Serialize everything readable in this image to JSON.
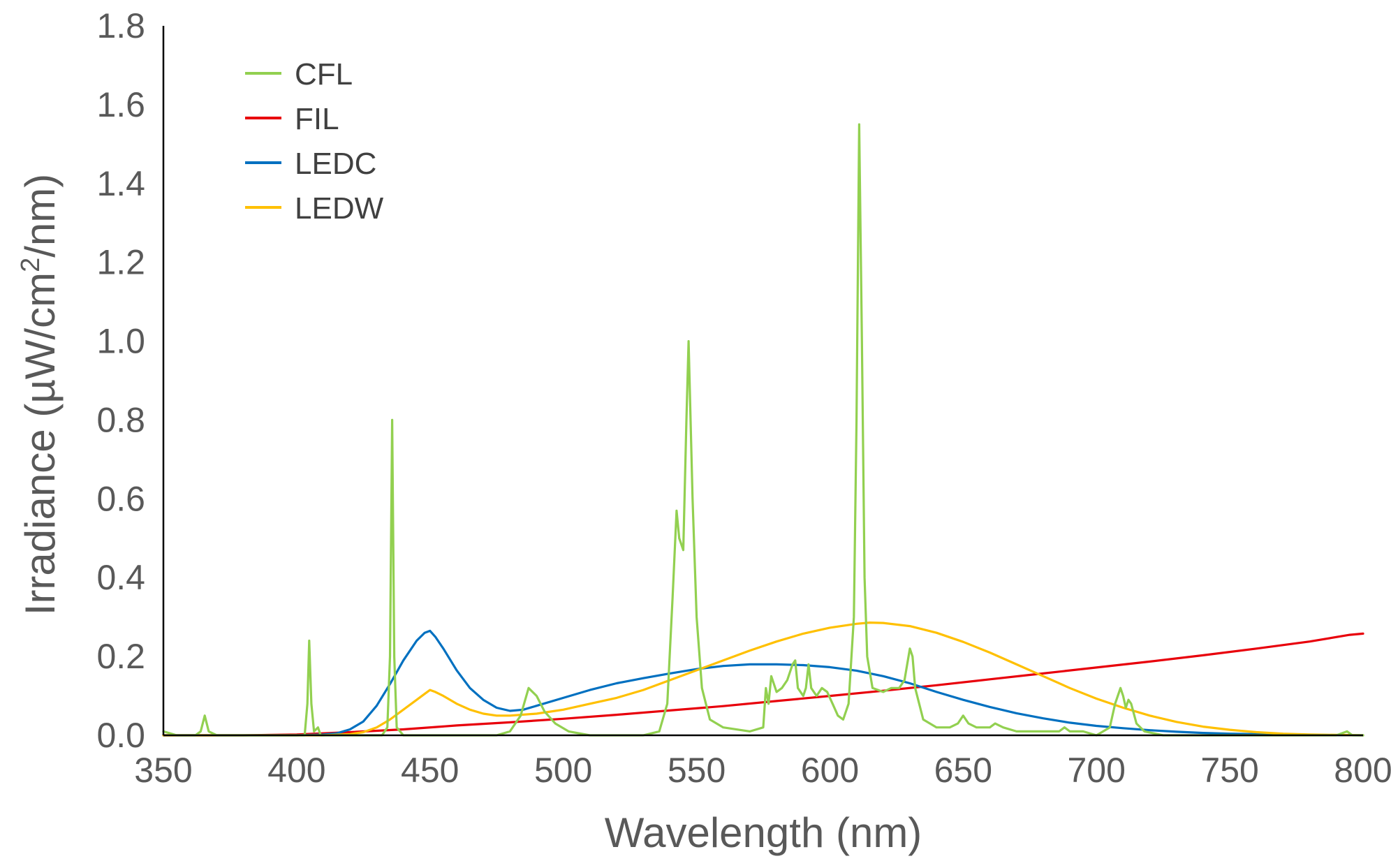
{
  "chart_data": {
    "type": "line",
    "title": "",
    "xlabel": "Wavelength (nm)",
    "ylabel": "Irradiance (µW/cm²/nm)",
    "ylabel_parts": {
      "main": "Irradiance (µW/cm",
      "sup": "2",
      "tail": "/nm)"
    },
    "xlim": [
      350,
      800
    ],
    "ylim": [
      0,
      1.8
    ],
    "xticks": [
      "350",
      "400",
      "450",
      "500",
      "550",
      "600",
      "650",
      "700",
      "750",
      "800"
    ],
    "yticks": [
      "0.0",
      "0.2",
      "0.4",
      "0.6",
      "0.8",
      "1.0",
      "1.2",
      "1.4",
      "1.6",
      "1.8"
    ],
    "grid": false,
    "legend_position": "top-left",
    "series": [
      {
        "name": "CFL",
        "color": "#92D050",
        "points": [
          [
            350,
            0.01
          ],
          [
            355,
            0.0
          ],
          [
            362,
            0.0
          ],
          [
            364,
            0.01
          ],
          [
            365.5,
            0.05
          ],
          [
            367,
            0.01
          ],
          [
            370,
            0.0
          ],
          [
            380,
            0.0
          ],
          [
            390,
            0.0
          ],
          [
            400,
            0.0
          ],
          [
            403,
            0.0
          ],
          [
            404,
            0.08
          ],
          [
            404.7,
            0.24
          ],
          [
            405.5,
            0.08
          ],
          [
            406.5,
            0.01
          ],
          [
            408,
            0.02
          ],
          [
            409,
            0.0
          ],
          [
            420,
            0.0
          ],
          [
            432,
            0.0
          ],
          [
            434,
            0.02
          ],
          [
            435,
            0.2
          ],
          [
            435.8,
            0.8
          ],
          [
            436.6,
            0.2
          ],
          [
            437.5,
            0.02
          ],
          [
            440,
            0.0
          ],
          [
            460,
            0.0
          ],
          [
            475,
            0.0
          ],
          [
            480,
            0.01
          ],
          [
            484,
            0.05
          ],
          [
            487,
            0.12
          ],
          [
            490,
            0.1
          ],
          [
            493,
            0.06
          ],
          [
            497,
            0.03
          ],
          [
            502,
            0.01
          ],
          [
            510,
            0.0
          ],
          [
            530,
            0.0
          ],
          [
            536,
            0.01
          ],
          [
            539,
            0.08
          ],
          [
            541,
            0.35
          ],
          [
            542.5,
            0.57
          ],
          [
            543.5,
            0.5
          ],
          [
            545,
            0.47
          ],
          [
            546.2,
            0.8
          ],
          [
            547,
            1.0
          ],
          [
            548.5,
            0.6
          ],
          [
            550,
            0.3
          ],
          [
            552,
            0.12
          ],
          [
            555,
            0.04
          ],
          [
            560,
            0.02
          ],
          [
            570,
            0.01
          ],
          [
            575,
            0.02
          ],
          [
            576,
            0.12
          ],
          [
            577,
            0.08
          ],
          [
            578,
            0.15
          ],
          [
            580,
            0.11
          ],
          [
            582,
            0.12
          ],
          [
            584,
            0.14
          ],
          [
            586,
            0.18
          ],
          [
            587,
            0.19
          ],
          [
            588,
            0.12
          ],
          [
            590,
            0.1
          ],
          [
            591,
            0.12
          ],
          [
            592,
            0.18
          ],
          [
            593,
            0.12
          ],
          [
            595,
            0.1
          ],
          [
            597,
            0.12
          ],
          [
            599,
            0.11
          ],
          [
            601,
            0.08
          ],
          [
            603,
            0.05
          ],
          [
            605,
            0.04
          ],
          [
            607,
            0.08
          ],
          [
            609,
            0.3
          ],
          [
            610,
            0.8
          ],
          [
            611,
            1.55
          ],
          [
            612,
            1.0
          ],
          [
            613,
            0.4
          ],
          [
            614,
            0.2
          ],
          [
            616,
            0.12
          ],
          [
            620,
            0.11
          ],
          [
            623,
            0.12
          ],
          [
            626,
            0.12
          ],
          [
            628,
            0.14
          ],
          [
            630,
            0.22
          ],
          [
            631,
            0.2
          ],
          [
            632,
            0.12
          ],
          [
            635,
            0.04
          ],
          [
            640,
            0.02
          ],
          [
            645,
            0.02
          ],
          [
            648,
            0.03
          ],
          [
            650,
            0.05
          ],
          [
            652,
            0.03
          ],
          [
            655,
            0.02
          ],
          [
            660,
            0.02
          ],
          [
            662,
            0.03
          ],
          [
            665,
            0.02
          ],
          [
            670,
            0.01
          ],
          [
            680,
            0.01
          ],
          [
            686,
            0.01
          ],
          [
            688,
            0.02
          ],
          [
            690,
            0.01
          ],
          [
            695,
            0.01
          ],
          [
            700,
            0.0
          ],
          [
            705,
            0.02
          ],
          [
            707,
            0.08
          ],
          [
            709,
            0.12
          ],
          [
            710,
            0.1
          ],
          [
            711,
            0.07
          ],
          [
            712,
            0.09
          ],
          [
            713,
            0.08
          ],
          [
            715,
            0.03
          ],
          [
            718,
            0.01
          ],
          [
            725,
            0.0
          ],
          [
            740,
            0.0
          ],
          [
            770,
            0.0
          ],
          [
            790,
            0.0
          ],
          [
            794,
            0.01
          ],
          [
            796,
            0.0
          ],
          [
            800,
            0.0
          ]
        ]
      },
      {
        "name": "FIL",
        "color": "#E8000B",
        "points": [
          [
            350,
            0.0
          ],
          [
            380,
            0.0
          ],
          [
            400,
            0.002
          ],
          [
            420,
            0.008
          ],
          [
            440,
            0.015
          ],
          [
            460,
            0.025
          ],
          [
            480,
            0.033
          ],
          [
            500,
            0.042
          ],
          [
            520,
            0.052
          ],
          [
            540,
            0.063
          ],
          [
            560,
            0.074
          ],
          [
            580,
            0.087
          ],
          [
            600,
            0.1
          ],
          [
            620,
            0.113
          ],
          [
            640,
            0.127
          ],
          [
            660,
            0.142
          ],
          [
            680,
            0.157
          ],
          [
            700,
            0.172
          ],
          [
            720,
            0.187
          ],
          [
            740,
            0.203
          ],
          [
            760,
            0.22
          ],
          [
            780,
            0.238
          ],
          [
            795,
            0.255
          ],
          [
            800,
            0.258
          ]
        ]
      },
      {
        "name": "LEDC",
        "color": "#0070C0",
        "points": [
          [
            350,
            0.0
          ],
          [
            400,
            0.0
          ],
          [
            410,
            0.002
          ],
          [
            415,
            0.005
          ],
          [
            420,
            0.015
          ],
          [
            425,
            0.035
          ],
          [
            430,
            0.075
          ],
          [
            435,
            0.13
          ],
          [
            440,
            0.19
          ],
          [
            445,
            0.24
          ],
          [
            448,
            0.26
          ],
          [
            450,
            0.265
          ],
          [
            452,
            0.25
          ],
          [
            455,
            0.22
          ],
          [
            460,
            0.165
          ],
          [
            465,
            0.12
          ],
          [
            470,
            0.09
          ],
          [
            475,
            0.07
          ],
          [
            480,
            0.062
          ],
          [
            485,
            0.065
          ],
          [
            490,
            0.075
          ],
          [
            500,
            0.095
          ],
          [
            510,
            0.115
          ],
          [
            520,
            0.132
          ],
          [
            530,
            0.145
          ],
          [
            540,
            0.157
          ],
          [
            550,
            0.168
          ],
          [
            560,
            0.176
          ],
          [
            570,
            0.18
          ],
          [
            580,
            0.18
          ],
          [
            590,
            0.178
          ],
          [
            600,
            0.173
          ],
          [
            610,
            0.164
          ],
          [
            620,
            0.15
          ],
          [
            630,
            0.132
          ],
          [
            640,
            0.11
          ],
          [
            650,
            0.09
          ],
          [
            660,
            0.072
          ],
          [
            670,
            0.056
          ],
          [
            680,
            0.043
          ],
          [
            690,
            0.032
          ],
          [
            700,
            0.024
          ],
          [
            710,
            0.018
          ],
          [
            720,
            0.013
          ],
          [
            730,
            0.009
          ],
          [
            740,
            0.006
          ],
          [
            750,
            0.004
          ],
          [
            760,
            0.003
          ],
          [
            770,
            0.002
          ],
          [
            780,
            0.001
          ],
          [
            800,
            0.0
          ]
        ]
      },
      {
        "name": "LEDW",
        "color": "#FFC000",
        "points": [
          [
            350,
            0.0
          ],
          [
            410,
            0.0
          ],
          [
            420,
            0.003
          ],
          [
            425,
            0.008
          ],
          [
            430,
            0.02
          ],
          [
            435,
            0.04
          ],
          [
            440,
            0.065
          ],
          [
            445,
            0.09
          ],
          [
            448,
            0.105
          ],
          [
            450,
            0.115
          ],
          [
            452,
            0.11
          ],
          [
            455,
            0.1
          ],
          [
            460,
            0.08
          ],
          [
            465,
            0.065
          ],
          [
            470,
            0.055
          ],
          [
            475,
            0.05
          ],
          [
            480,
            0.05
          ],
          [
            490,
            0.055
          ],
          [
            500,
            0.065
          ],
          [
            510,
            0.08
          ],
          [
            520,
            0.095
          ],
          [
            530,
            0.115
          ],
          [
            540,
            0.14
          ],
          [
            550,
            0.165
          ],
          [
            560,
            0.19
          ],
          [
            570,
            0.215
          ],
          [
            580,
            0.238
          ],
          [
            590,
            0.258
          ],
          [
            600,
            0.273
          ],
          [
            610,
            0.283
          ],
          [
            615,
            0.286
          ],
          [
            620,
            0.285
          ],
          [
            630,
            0.277
          ],
          [
            640,
            0.26
          ],
          [
            650,
            0.237
          ],
          [
            660,
            0.21
          ],
          [
            670,
            0.18
          ],
          [
            680,
            0.15
          ],
          [
            690,
            0.12
          ],
          [
            700,
            0.093
          ],
          [
            710,
            0.07
          ],
          [
            720,
            0.05
          ],
          [
            730,
            0.034
          ],
          [
            740,
            0.022
          ],
          [
            750,
            0.014
          ],
          [
            760,
            0.008
          ],
          [
            770,
            0.004
          ],
          [
            780,
            0.002
          ],
          [
            790,
            0.001
          ],
          [
            800,
            0.0
          ]
        ]
      }
    ]
  }
}
